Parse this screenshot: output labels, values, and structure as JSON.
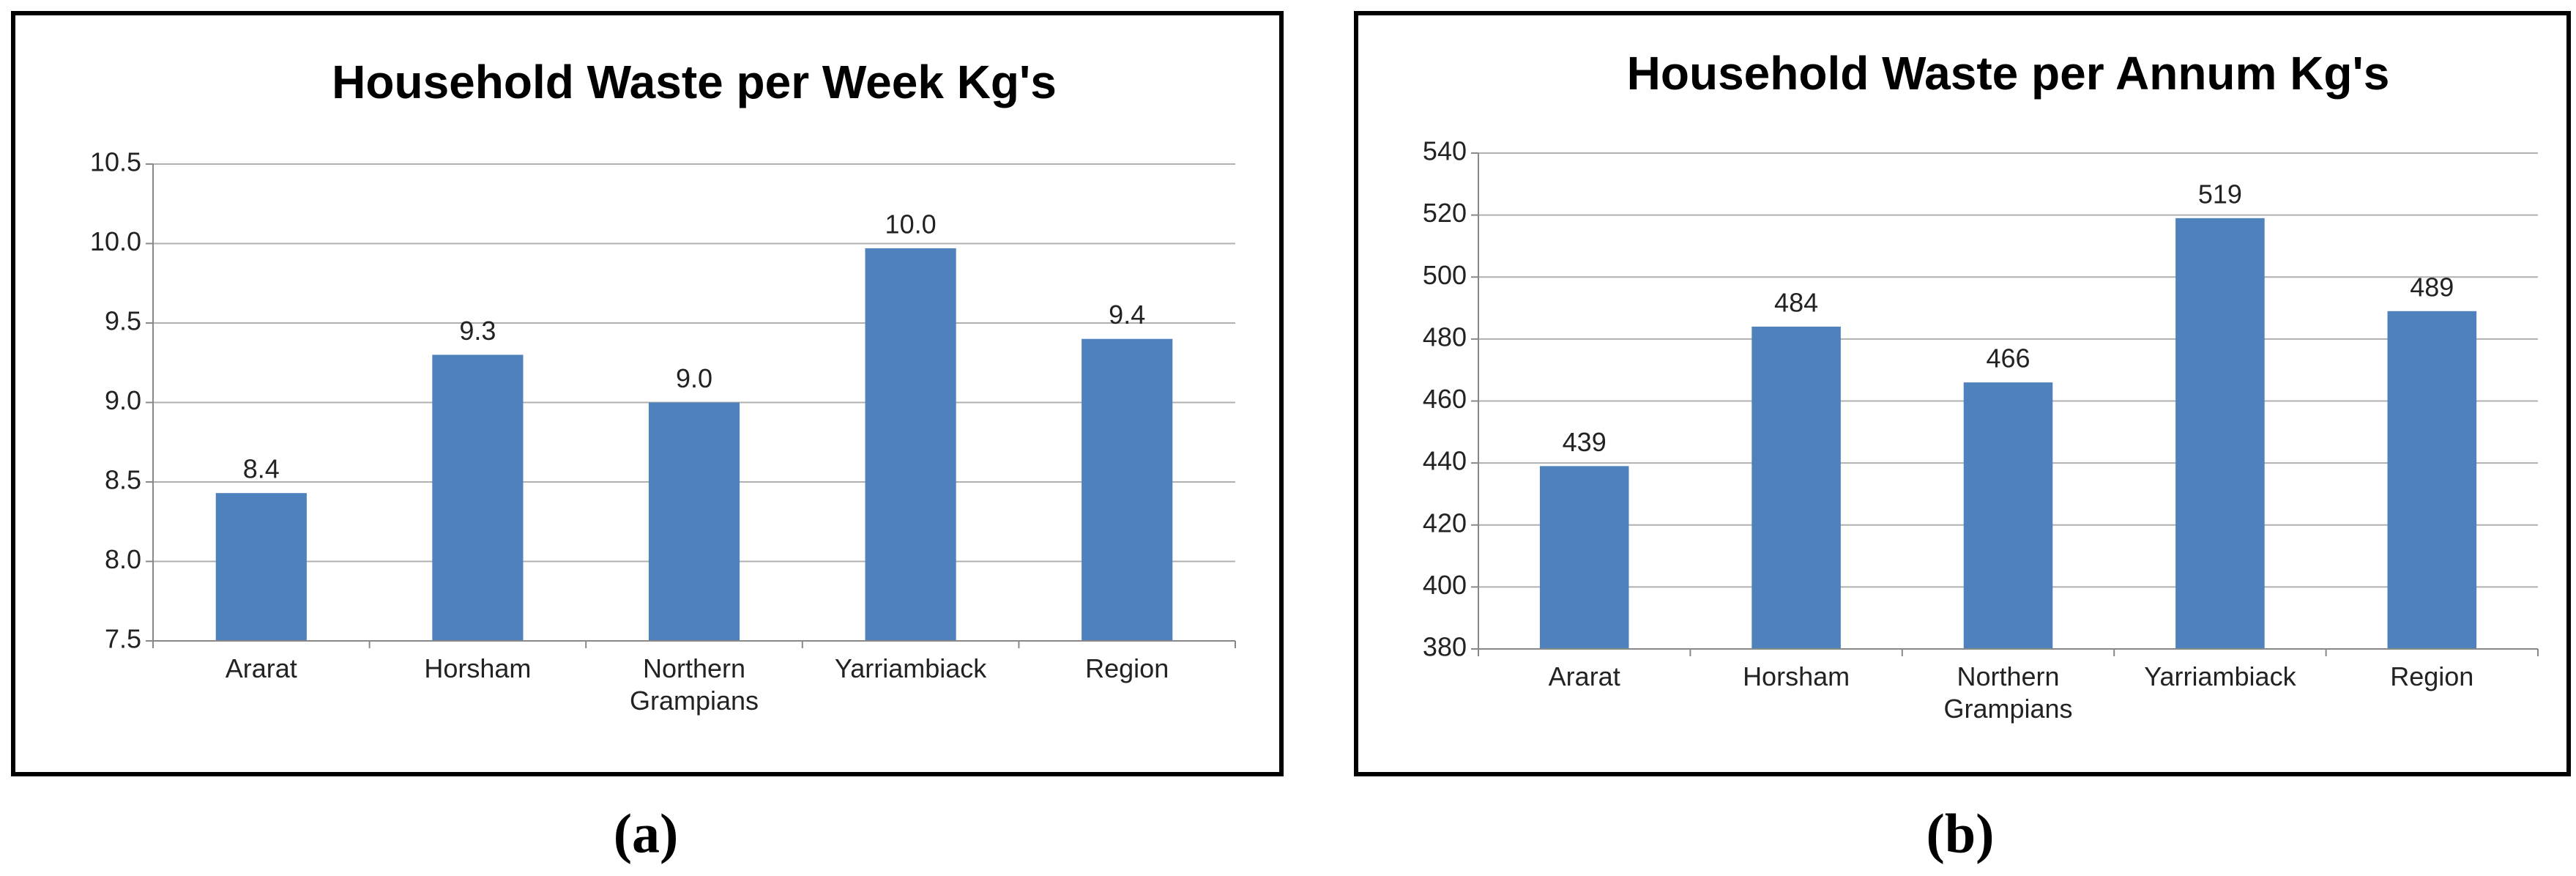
{
  "chart_data": [
    {
      "type": "bar",
      "title": "Household Waste per Week Kg's",
      "categories": [
        "Ararat",
        "Horsham",
        "Northern Grampians",
        "Yarriambiack",
        "Region"
      ],
      "values": [
        8.43,
        9.3,
        9.0,
        9.97,
        9.4
      ],
      "value_labels": [
        "8.4",
        "9.3",
        "9.0",
        "10.0",
        "9.4"
      ],
      "color": "#4f81bd",
      "ylim": [
        7.5,
        10.5
      ],
      "yticks": [
        7.5,
        {
          "value": 8,
          "label": "8.0"
        },
        8.5,
        {
          "value": 9,
          "label": "9.0"
        },
        9.5,
        {
          "value": 10,
          "label": "10.0"
        },
        10.5
      ],
      "grid": true
    },
    {
      "type": "bar",
      "title": "Household Waste per Annum Kg's",
      "categories": [
        "Ararat",
        "Horsham",
        "Northern Grampians",
        "Yarriambiack",
        "Region"
      ],
      "values": [
        439,
        484,
        466,
        519,
        489
      ],
      "color": "#4f81bd",
      "ylim": [
        380,
        540
      ],
      "yticks": [
        380,
        400,
        420,
        440,
        460,
        480,
        500,
        520,
        540
      ],
      "grid": true
    }
  ],
  "captions": [
    "(a)",
    "(b)"
  ]
}
